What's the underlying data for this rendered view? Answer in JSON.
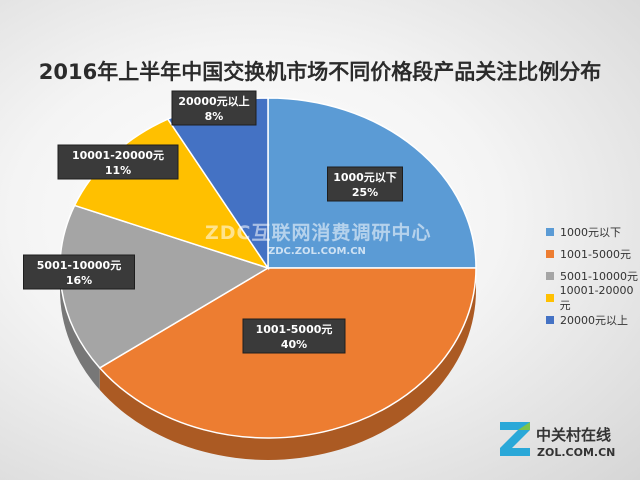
{
  "chart_data": {
    "type": "pie",
    "title": "2016年上半年中国交换机市场不同价格段产品关注比例分布",
    "slices": [
      {
        "name": "1000元以下",
        "value": 25,
        "label": "25%",
        "color": "#5b9bd5"
      },
      {
        "name": "1001-5000元",
        "value": 40,
        "label": "40%",
        "color": "#ed7d31"
      },
      {
        "name": "5001-10000元",
        "value": 16,
        "label": "16%",
        "color": "#a5a5a5"
      },
      {
        "name": "10001-20000元",
        "value": 11,
        "label": "11%",
        "color": "#ffc000"
      },
      {
        "name": "20000元以上",
        "value": 8,
        "label": "8%",
        "color": "#4472c4"
      }
    ],
    "legend_position": "right"
  },
  "watermark": {
    "main": "ZDC互联网消费调研中心",
    "sub": "ZDC.ZOL.COM.CN"
  },
  "logo": {
    "cn": "中关村在线",
    "en": "ZOL.COM.CN"
  }
}
